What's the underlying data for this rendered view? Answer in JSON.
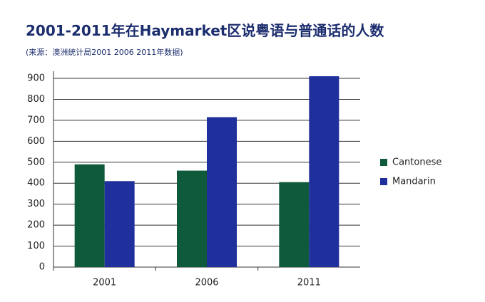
{
  "chart_data": {
    "type": "bar",
    "title": "2001-2011年在Haymarket区说粤语与普通话的人数",
    "subtitle": "(来源：澳洲统计局2001 2006 2011年数据)",
    "categories": [
      "2001",
      "2006",
      "2011"
    ],
    "series": [
      {
        "name": "Cantonese",
        "color": "#0e5a3b",
        "values": [
          490,
          460,
          405
        ]
      },
      {
        "name": "Mandarin",
        "color": "#1f2f9c",
        "values": [
          410,
          715,
          910
        ]
      }
    ],
    "ylim": [
      0,
      900
    ],
    "yticks": [
      0,
      100,
      200,
      300,
      400,
      500,
      600,
      700,
      800,
      900
    ],
    "grid": true,
    "legend": "right"
  }
}
